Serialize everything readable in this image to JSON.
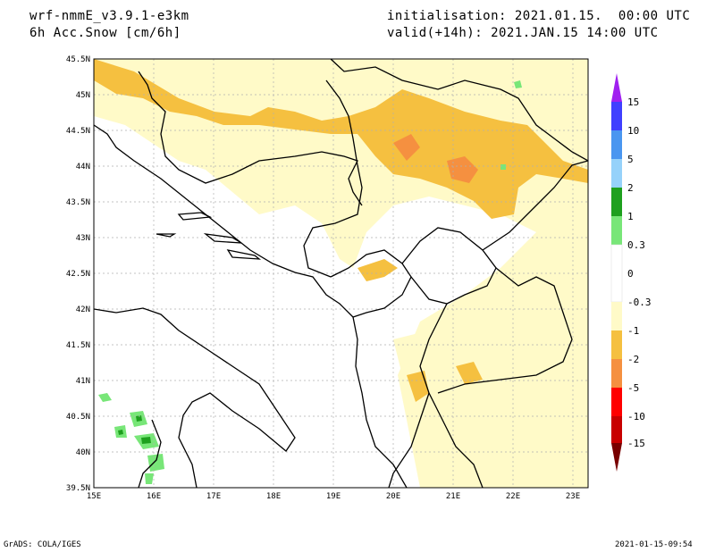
{
  "header": {
    "model": "wrf-nmmE_v3.9.1-e3km",
    "variable": "6h Acc.Snow [cm/6h]",
    "init": "initialisation: 2021.01.15.  00:00 UTC",
    "valid": "valid(+14h): 2021.JAN.15 14:00 UTC"
  },
  "footer": {
    "left": "GrADS: COLA/IGES",
    "right": "2021-01-15-09:54"
  },
  "map": {
    "lon_labels": [
      "15E",
      "16E",
      "17E",
      "18E",
      "19E",
      "20E",
      "21E",
      "22E",
      "23E"
    ],
    "lat_labels": [
      "39.5N",
      "40N",
      "40.5N",
      "41N",
      "41.5N",
      "42N",
      "42.5N",
      "43N",
      "43.5N",
      "44N",
      "44.5N",
      "45N",
      "45.5N"
    ],
    "lon_range": [
      15,
      23.25
    ],
    "lat_range": [
      39.5,
      45.5
    ]
  },
  "colorbar": {
    "levels": [
      "15",
      "10",
      "5",
      "2",
      "1",
      "0.3",
      "0",
      "-0.3",
      "-1",
      "-2",
      "-5",
      "-10",
      "-15"
    ],
    "colors": [
      "#a020f0",
      "#4040ff",
      "#4a96f0",
      "#96d2fa",
      "#1ea01e",
      "#78e678",
      "#ffffff",
      "#fffac8",
      "#f5c040",
      "#f59040",
      "#ff0000",
      "#c80000",
      "#780000"
    ]
  }
}
